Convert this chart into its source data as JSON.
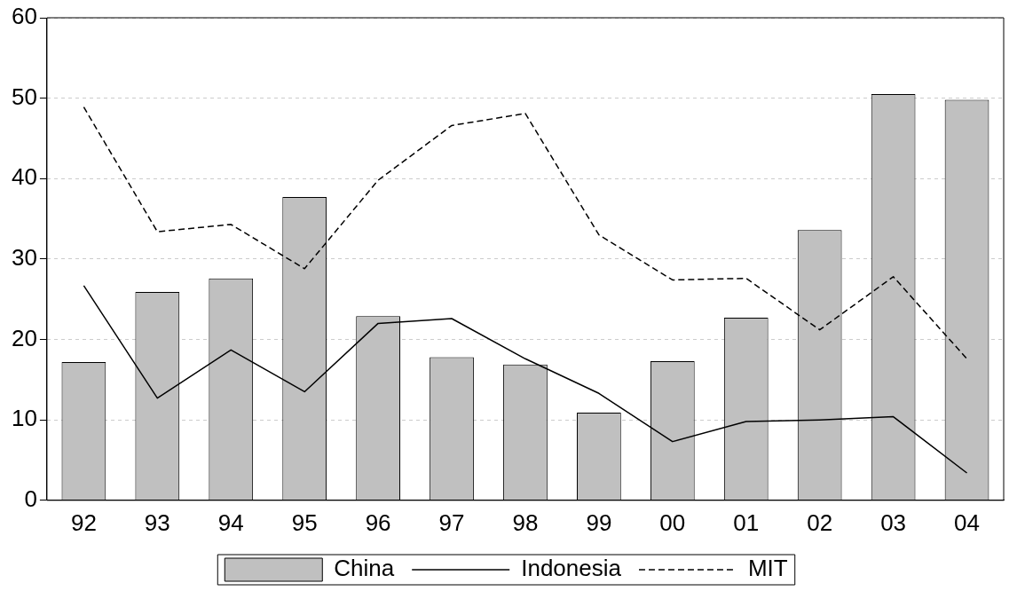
{
  "chart_data": {
    "type": "bar",
    "categories": [
      "92",
      "93",
      "94",
      "95",
      "96",
      "97",
      "98",
      "99",
      "00",
      "01",
      "02",
      "03",
      "04"
    ],
    "series": [
      {
        "name": "China",
        "color": "#c0c0c0",
        "values": [
          17.2,
          25.9,
          27.6,
          37.7,
          22.9,
          17.8,
          16.9,
          10.9,
          17.3,
          22.7,
          33.6,
          50.5,
          49.8
        ]
      },
      {
        "name": "Indonesia",
        "type": "line",
        "color": "#000000",
        "line_style": "solid",
        "values": [
          26.7,
          12.7,
          18.7,
          13.5,
          22.0,
          22.6,
          17.6,
          13.3,
          7.3,
          9.8,
          10.0,
          10.4,
          3.4
        ]
      },
      {
        "name": "MIT",
        "type": "line",
        "color": "#000000",
        "line_style": "dashed",
        "values": [
          48.9,
          33.4,
          34.3,
          28.8,
          39.8,
          46.6,
          48.1,
          33.0,
          27.4,
          27.6,
          21.2,
          27.8,
          17.6
        ]
      }
    ],
    "ylim": [
      0,
      60
    ],
    "yticks": [
      0,
      10,
      20,
      30,
      40,
      50,
      60
    ],
    "grid": "y",
    "legend": "bottom",
    "marker": "none"
  }
}
